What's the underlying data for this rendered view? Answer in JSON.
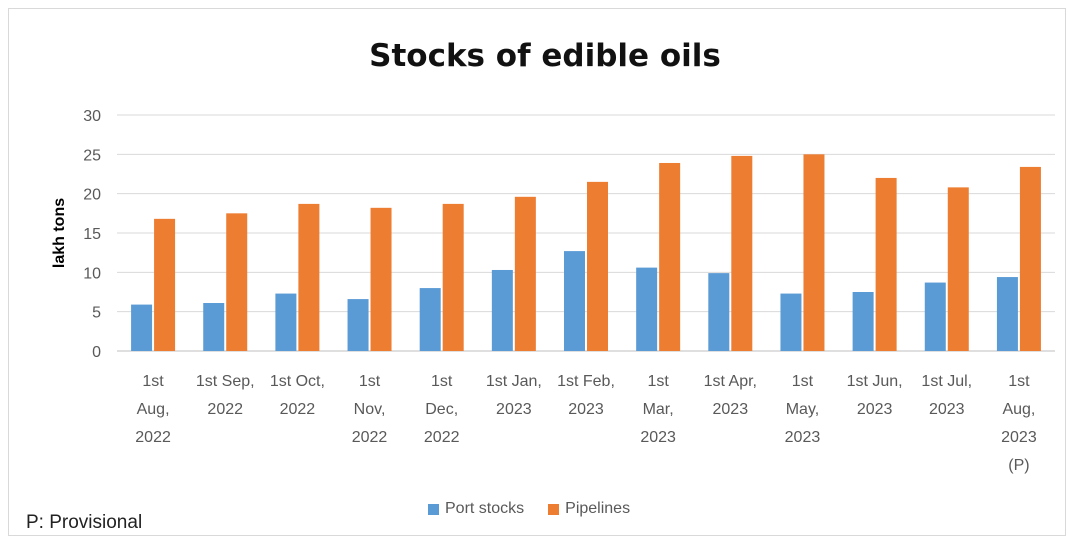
{
  "chart_data": {
    "type": "bar",
    "title": "Stocks of edible oils",
    "ylabel": "lakh tons",
    "xlabel": "",
    "ylim": [
      0,
      30
    ],
    "yticks": [
      0,
      5,
      10,
      15,
      20,
      25,
      30
    ],
    "grid": true,
    "legend_position": "bottom",
    "categories": [
      [
        "1st",
        "Aug,",
        "2022"
      ],
      [
        "1st Sep,",
        "2022"
      ],
      [
        "1st Oct,",
        "2022"
      ],
      [
        "1st",
        "Nov,",
        "2022"
      ],
      [
        "1st",
        "Dec,",
        "2022"
      ],
      [
        "1st Jan,",
        "2023"
      ],
      [
        "1st Feb,",
        "2023"
      ],
      [
        "1st",
        "Mar,",
        "2023"
      ],
      [
        "1st Apr,",
        "2023"
      ],
      [
        "1st",
        "May,",
        "2023"
      ],
      [
        "1st Jun,",
        "2023"
      ],
      [
        "1st Jul,",
        "2023"
      ],
      [
        "1st",
        "Aug,",
        "2023",
        "(P)"
      ]
    ],
    "series": [
      {
        "name": "Port stocks",
        "color": "#5b9bd5",
        "values": [
          5.9,
          6.1,
          7.3,
          6.6,
          8.0,
          10.3,
          12.7,
          10.6,
          9.9,
          7.3,
          7.5,
          8.7,
          9.4
        ]
      },
      {
        "name": "Pipelines",
        "color": "#ed7d31",
        "values": [
          16.8,
          17.5,
          18.7,
          18.2,
          18.7,
          19.6,
          21.5,
          23.9,
          24.8,
          25.0,
          22.0,
          20.8,
          23.4
        ]
      }
    ]
  },
  "footnote": "P: Provisional"
}
